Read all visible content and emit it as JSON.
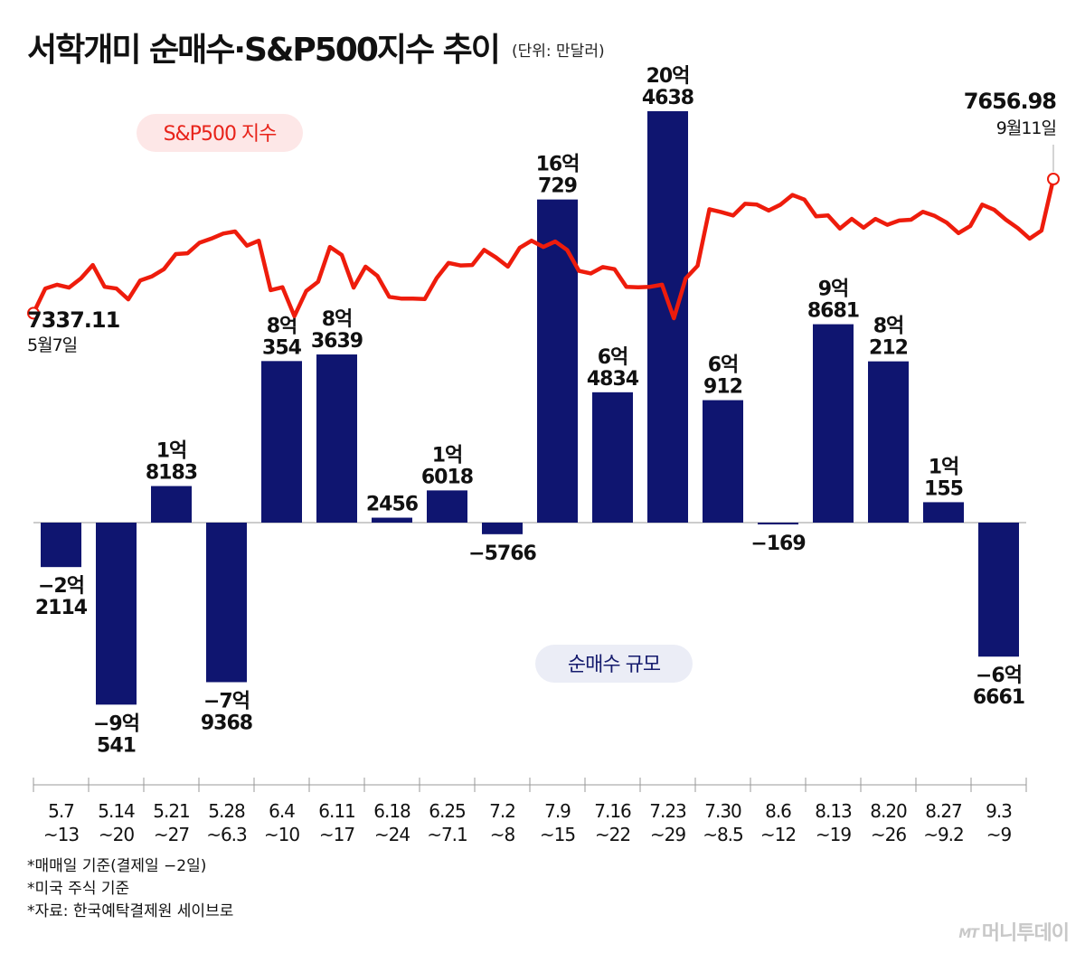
{
  "header": {
    "title": "서학개미 순매수·S&P500지수 추이",
    "unit": "(단위: 만달러)"
  },
  "labels": {
    "sp_pill": "S&P500 지수",
    "net_pill": "순매수 규모",
    "sp_start_value": "7337.11",
    "sp_start_date": "5월7일",
    "sp_end_value": "7656.98",
    "sp_end_date": "9월11일"
  },
  "colors": {
    "bar": "#0f1570",
    "line": "#ee1c0c",
    "sp_pill_bg": "#fde7e7",
    "sp_pill_text": "#e8231a",
    "net_pill_bg": "#ebedf6",
    "net_pill_text": "#161c6e"
  },
  "chart_data": [
    {
      "type": "bar",
      "series": [
        {
          "name": "순매수 규모",
          "values": [
            -22114,
            -90541,
            18183,
            -79368,
            80354,
            83639,
            2456,
            16018,
            -5766,
            160729,
            64834,
            204638,
            60912,
            -169,
            98681,
            80212,
            10155,
            -66661
          ]
        }
      ],
      "categories": [
        "5.7\n~13",
        "5.14\n~20",
        "5.21\n~27",
        "5.28\n~6.3",
        "6.4\n~10",
        "6.11\n~17",
        "6.18\n~24",
        "6.25\n~7.1",
        "7.2\n~8",
        "7.9\n~15",
        "7.16\n~22",
        "7.23\n~29",
        "7.30\n~8.5",
        "8.6\n~12",
        "8.13\n~19",
        "8.20\n~26",
        "8.27\n~9.2",
        "9.3\n~9"
      ],
      "value_labels": [
        [
          "−2억",
          "2114"
        ],
        [
          "−9억",
          "541"
        ],
        [
          "1억",
          "8183"
        ],
        [
          "−7억",
          "9368"
        ],
        [
          "8억",
          "354"
        ],
        [
          "8억",
          "3639"
        ],
        [
          "",
          "2456"
        ],
        [
          "1억",
          "6018"
        ],
        [
          "",
          "−5766"
        ],
        [
          "16억",
          "729"
        ],
        [
          "6억",
          "4834"
        ],
        [
          "20억",
          "4638"
        ],
        [
          "6억",
          "912"
        ],
        [
          "",
          "−169"
        ],
        [
          "9억",
          "8681"
        ],
        [
          "8억",
          "212"
        ],
        [
          "1억",
          "155"
        ],
        [
          "−6억",
          "6661"
        ]
      ]
    },
    {
      "type": "line",
      "series": [
        {
          "name": "S&P500 지수",
          "values": [
            7337.11,
            7396,
            7405,
            7398,
            7420,
            7452,
            7400,
            7396,
            7370,
            7415,
            7425,
            7442,
            7478,
            7480,
            7505,
            7515,
            7527,
            7532,
            7498,
            7510,
            7392,
            7399,
            7330,
            7390,
            7412,
            7495,
            7476,
            7398,
            7448,
            7426,
            7376,
            7372,
            7372,
            7371,
            7421,
            7457,
            7451,
            7452,
            7488,
            7470,
            7448,
            7493,
            7510,
            7495,
            7508,
            7488,
            7438,
            7432,
            7447,
            7442,
            7400,
            7399,
            7400,
            7405,
            7325,
            7420,
            7450,
            7585,
            7578,
            7570,
            7598,
            7596,
            7582,
            7596,
            7619,
            7608,
            7568,
            7570,
            7539,
            7562,
            7541,
            7562,
            7548,
            7558,
            7560,
            7579,
            7569,
            7553,
            7528,
            7545,
            7596,
            7584,
            7560,
            7540,
            7515,
            7534,
            7656.98
          ]
        }
      ]
    }
  ],
  "notes": [
    "*매매일 기준(결제일 −2일)",
    "*미국 주식 기준",
    "*자료: 한국예탁결제원 세이브로"
  ],
  "credit": {
    "mt": "MT",
    "name": "머니투데이"
  }
}
